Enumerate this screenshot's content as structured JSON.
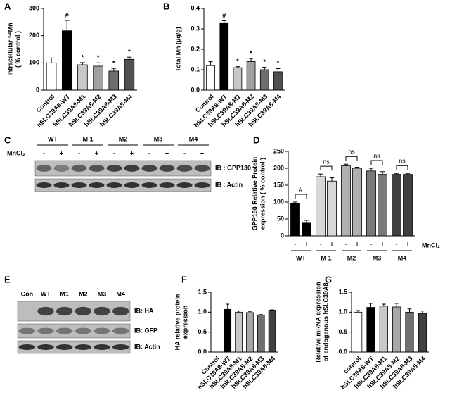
{
  "chart_data": [
    {
      "type": "bar",
      "panel": "A",
      "ylabel": [
        "Intracellular ⁵⁴Mn",
        "( % control )"
      ],
      "categories": [
        "Control",
        "hSLC39A8-WT",
        "hSLC39A8-M1",
        "hSLC39A8-M2",
        "hSLC39A8-M3",
        "hSLC39A8-M4"
      ],
      "values": [
        100,
        218,
        93,
        88,
        70,
        113
      ],
      "errors": [
        18,
        38,
        8,
        12,
        10,
        8
      ],
      "annotations": [
        null,
        "#",
        "*",
        "*",
        "*",
        "*"
      ],
      "colors": [
        "#ffffff",
        "#000000",
        "#c8c8c8",
        "#a0a0a0",
        "#6e6e6e",
        "#505050"
      ],
      "ylim": [
        0,
        300
      ],
      "yticks": [
        0,
        100,
        200,
        300
      ]
    },
    {
      "type": "bar",
      "panel": "B",
      "ylabel": [
        "Total  Mn (µg/g)"
      ],
      "categories": [
        "Control",
        "hSLC39A8-WT",
        "hSLC39A8-M1",
        "hSLC39A8-M2",
        "hSLC39A8-M3",
        "hSLC39A8-M4"
      ],
      "values": [
        0.12,
        0.33,
        0.11,
        0.14,
        0.1,
        0.09
      ],
      "errors": [
        0.02,
        0.01,
        0.005,
        0.015,
        0.012,
        0.015
      ],
      "annotations": [
        null,
        "#",
        "*",
        "*",
        "*",
        "*"
      ],
      "colors": [
        "#ffffff",
        "#000000",
        "#c8c8c8",
        "#a0a0a0",
        "#6e6e6e",
        "#505050"
      ],
      "ylim": [
        0,
        0.4
      ],
      "yticks": [
        {
          "value": 0,
          "label": "0.0"
        },
        0.1,
        0.2,
        0.3,
        0.4
      ]
    },
    {
      "type": "grouped-bar",
      "panel": "D",
      "ylabel": [
        "GPP130 Relative Protein",
        "expression ( % control )"
      ],
      "groups": [
        "WT",
        "M 1",
        "M2",
        "M3",
        "M4"
      ],
      "group_annotations": [
        "#",
        "ns",
        "ns",
        "ns",
        "ns"
      ],
      "treatment": "MnCl₂",
      "categories": [
        "-",
        "+",
        "-",
        "+",
        "-",
        "+",
        "-",
        "+",
        "-",
        "+"
      ],
      "values": [
        97,
        40,
        175,
        162,
        207,
        200,
        192,
        182,
        182,
        182
      ],
      "errors": [
        3,
        6,
        8,
        10,
        5,
        3,
        8,
        8,
        3,
        3
      ],
      "colors": [
        "#000000",
        "#000000",
        "#d8d8d8",
        "#d8d8d8",
        "#b0b0b0",
        "#b0b0b0",
        "#7a7a7a",
        "#7a7a7a",
        "#404040",
        "#404040"
      ],
      "ylim": [
        0,
        250
      ],
      "yticks": [
        0,
        50,
        100,
        150,
        200,
        250
      ]
    },
    {
      "type": "bar",
      "panel": "F",
      "ylabel": [
        "HA relative protein",
        "expression"
      ],
      "categories": [
        "Control",
        "hSLC39A8-WT",
        "hSLC39A8-M1",
        "hSLC39A8-M2",
        "hSLC39A8-M3",
        "hSLC39A8-M4"
      ],
      "values": [
        null,
        1.07,
        1.0,
        0.99,
        0.93,
        1.05
      ],
      "errors": [
        null,
        0.13,
        0.03,
        0.03,
        0.01,
        0.01
      ],
      "colors": [
        null,
        "#000000",
        "#c8c8c8",
        "#a8a8a8",
        "#707070",
        "#404040"
      ],
      "ylim": [
        0,
        1.5
      ],
      "yticks": [
        {
          "value": 0,
          "label": "0.0"
        },
        0.5,
        {
          "value": 1,
          "label": "1.0"
        },
        1.5
      ]
    },
    {
      "type": "bar",
      "panel": "G",
      "ylabel": [
        "Relative mRNA expression",
        "of endogenous hSLC39A8"
      ],
      "categories": [
        "control",
        "hSLC39A8-WT",
        "hSLC39A8-M1",
        "hSLC39A8-M2",
        "hSLC39A8-M3",
        "hSLC39A8-M4"
      ],
      "values": [
        1.0,
        1.12,
        1.15,
        1.13,
        1.0,
        0.97
      ],
      "errors": [
        0.04,
        0.1,
        0.05,
        0.09,
        0.08,
        0.06
      ],
      "colors": [
        "#ffffff",
        "#000000",
        "#c8c8c8",
        "#a8a8a8",
        "#707070",
        "#404040"
      ],
      "ylim": [
        0,
        1.5
      ],
      "yticks": [
        {
          "value": 0,
          "label": "0.0"
        },
        0.5,
        {
          "value": 1,
          "label": "1.0"
        },
        1.5
      ]
    }
  ],
  "blots": [
    {
      "panel": "C",
      "lanes": [
        "WT",
        "M 1",
        "M2",
        "M3",
        "M4"
      ],
      "treatment": "MnCl₂",
      "signs": [
        "-",
        "+"
      ],
      "strips": [
        "IB : GPP130",
        "IB : Actin"
      ]
    },
    {
      "panel": "E",
      "lanes": [
        "Con",
        "WT",
        "M1",
        "M2",
        "M3",
        "M4"
      ],
      "strips": [
        "IB: HA",
        "IB: GFP",
        "IB: Actin"
      ]
    }
  ]
}
